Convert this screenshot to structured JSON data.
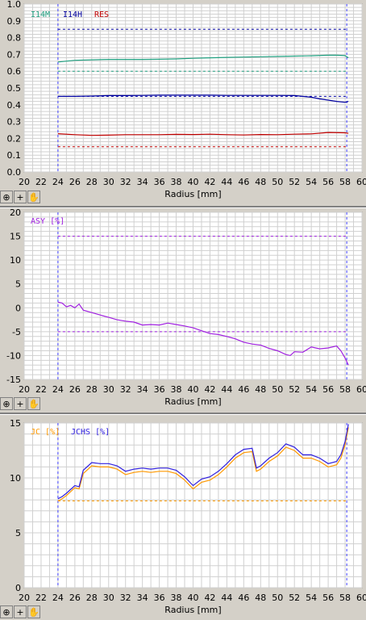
{
  "chart_data": [
    {
      "type": "line",
      "xlabel": "Radius [mm]",
      "xlim": [
        20,
        60
      ],
      "xticks": [
        "20",
        "22",
        "24",
        "26",
        "28",
        "30",
        "32",
        "34",
        "36",
        "38",
        "40",
        "42",
        "44",
        "46",
        "48",
        "50",
        "52",
        "54",
        "56",
        "58",
        "60"
      ],
      "ylim": [
        0,
        1.0
      ],
      "yticks": [
        "0.0",
        "0.1",
        "0.2",
        "0.3",
        "0.4",
        "0.5",
        "0.6",
        "0.7",
        "0.8",
        "0.9",
        "1.0"
      ],
      "grid": true,
      "legend_placement": "top-left",
      "vlines": [
        24,
        58.2
      ],
      "series": [
        {
          "name": "I14M",
          "color": "#20a080",
          "x": [
            24,
            26,
            28,
            30,
            32,
            34,
            36,
            38,
            40,
            42,
            44,
            46,
            48,
            50,
            52,
            54,
            56,
            57,
            58,
            58.4
          ],
          "y": [
            0.655,
            0.665,
            0.668,
            0.67,
            0.67,
            0.67,
            0.671,
            0.673,
            0.677,
            0.68,
            0.682,
            0.684,
            0.686,
            0.688,
            0.69,
            0.692,
            0.695,
            0.695,
            0.693,
            0.68
          ],
          "limit": 0.6
        },
        {
          "name": "I14H",
          "color": "#0000a0",
          "x": [
            24,
            26,
            28,
            30,
            32,
            34,
            36,
            38,
            40,
            42,
            44,
            46,
            48,
            50,
            52,
            53,
            54,
            55,
            56,
            57,
            58,
            58.4
          ],
          "y": [
            0.45,
            0.45,
            0.452,
            0.455,
            0.455,
            0.456,
            0.457,
            0.457,
            0.457,
            0.457,
            0.456,
            0.456,
            0.456,
            0.456,
            0.455,
            0.45,
            0.445,
            0.435,
            0.428,
            0.42,
            0.415,
            0.42
          ],
          "limit": 0.85,
          "limit2": 0.45
        },
        {
          "name": "RES",
          "color": "#c00000",
          "x": [
            24,
            26,
            28,
            30,
            32,
            34,
            36,
            38,
            40,
            42,
            44,
            46,
            48,
            50,
            52,
            54,
            56,
            58,
            58.4
          ],
          "y": [
            0.228,
            0.222,
            0.218,
            0.219,
            0.222,
            0.222,
            0.222,
            0.224,
            0.223,
            0.225,
            0.222,
            0.22,
            0.223,
            0.222,
            0.225,
            0.227,
            0.235,
            0.233,
            0.23
          ],
          "limit": 0.15
        }
      ]
    },
    {
      "type": "line",
      "xlabel": "Radius [mm]",
      "xlim": [
        20,
        60
      ],
      "xticks": [
        "20",
        "22",
        "24",
        "26",
        "28",
        "30",
        "32",
        "34",
        "36",
        "38",
        "40",
        "42",
        "44",
        "46",
        "48",
        "50",
        "52",
        "54",
        "56",
        "58",
        "60"
      ],
      "ylim": [
        -15,
        20
      ],
      "yticks": [
        "-15",
        "-10",
        "-5",
        "0",
        "5",
        "10",
        "15",
        "20"
      ],
      "grid": true,
      "legend_placement": "top-left",
      "vlines": [
        24,
        58.2
      ],
      "series": [
        {
          "name": "ASY [%]",
          "color": "#a020e0",
          "x": [
            24,
            24.5,
            25,
            25.5,
            26,
            26.5,
            27,
            28,
            29,
            30,
            31,
            32,
            33,
            34,
            35,
            36,
            37,
            38,
            39,
            40,
            41,
            42,
            43,
            44,
            45,
            46,
            47,
            48,
            49,
            50,
            51,
            51.5,
            52,
            53,
            54,
            55,
            56,
            57,
            57.5,
            58,
            58.4
          ],
          "y": [
            1.2,
            1.0,
            0.2,
            0.5,
            0.0,
            0.8,
            -0.5,
            -1.0,
            -1.5,
            -2.0,
            -2.5,
            -2.8,
            -3.0,
            -3.6,
            -3.5,
            -3.6,
            -3.2,
            -3.5,
            -3.8,
            -4.2,
            -4.8,
            -5.4,
            -5.6,
            -6.0,
            -6.5,
            -7.2,
            -7.6,
            -7.8,
            -8.5,
            -9.0,
            -9.8,
            -10.0,
            -9.2,
            -9.3,
            -8.2,
            -8.6,
            -8.4,
            -8.0,
            -9.0,
            -10.5,
            -12.0
          ],
          "limits": [
            15,
            -5
          ]
        }
      ]
    },
    {
      "type": "line",
      "xlabel": "Radius [mm]",
      "xlim": [
        20,
        60
      ],
      "xticks": [
        "20",
        "22",
        "24",
        "26",
        "28",
        "30",
        "32",
        "34",
        "36",
        "38",
        "40",
        "42",
        "44",
        "46",
        "48",
        "50",
        "52",
        "54",
        "56",
        "58",
        "60"
      ],
      "ylim": [
        0,
        15
      ],
      "yticks": [
        "0",
        "5",
        "10",
        "15"
      ],
      "grid": true,
      "legend_placement": "top-left",
      "vlines": [
        24,
        58.2
      ],
      "series": [
        {
          "name": "JC [%]",
          "color": "#ff9900",
          "x": [
            24,
            24.5,
            25,
            26,
            26.5,
            27,
            28,
            29,
            30,
            31,
            32,
            33,
            34,
            35,
            36,
            37,
            38,
            39,
            40,
            41,
            42,
            43,
            44,
            45,
            46,
            47,
            47.5,
            48,
            49,
            50,
            51,
            52,
            53,
            54,
            55,
            56,
            57,
            57.5,
            58,
            58.4
          ],
          "y": [
            7.9,
            8.1,
            8.4,
            9.1,
            9.0,
            10.4,
            11.1,
            11.0,
            11.0,
            10.8,
            10.3,
            10.5,
            10.6,
            10.5,
            10.6,
            10.6,
            10.4,
            9.8,
            9.0,
            9.6,
            9.8,
            10.3,
            11.0,
            11.8,
            12.3,
            12.4,
            10.6,
            10.8,
            11.5,
            12.0,
            12.8,
            12.5,
            11.8,
            11.8,
            11.5,
            11.0,
            11.2,
            11.8,
            13.0,
            14.6
          ],
          "limit": 7.9
        },
        {
          "name": "JCHS [%]",
          "color": "#3020e0",
          "x": [
            24,
            24.5,
            25,
            26,
            26.5,
            27,
            28,
            29,
            30,
            31,
            32,
            33,
            34,
            35,
            36,
            37,
            38,
            39,
            40,
            41,
            42,
            43,
            44,
            45,
            46,
            47,
            47.5,
            48,
            49,
            50,
            51,
            52,
            53,
            54,
            55,
            56,
            57,
            57.5,
            58,
            58.4
          ],
          "y": [
            8.1,
            8.3,
            8.6,
            9.3,
            9.2,
            10.7,
            11.4,
            11.3,
            11.3,
            11.1,
            10.6,
            10.8,
            10.9,
            10.8,
            10.9,
            10.9,
            10.7,
            10.1,
            9.3,
            9.9,
            10.1,
            10.6,
            11.3,
            12.1,
            12.6,
            12.7,
            10.9,
            11.1,
            11.8,
            12.3,
            13.1,
            12.8,
            12.1,
            12.1,
            11.8,
            11.3,
            11.5,
            12.1,
            13.3,
            14.9
          ]
        }
      ]
    }
  ],
  "toolbar_icons": [
    "zoom-icon",
    "crosshair-icon",
    "hand-icon"
  ]
}
